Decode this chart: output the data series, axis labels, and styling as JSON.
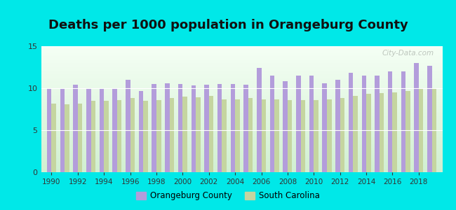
{
  "title": "Deaths per 1000 population in Orangeburg County",
  "years": [
    1990,
    1991,
    1992,
    1993,
    1994,
    1995,
    1996,
    1997,
    1998,
    1999,
    2000,
    2001,
    2002,
    2003,
    2004,
    2005,
    2006,
    2007,
    2008,
    2009,
    2010,
    2011,
    2012,
    2013,
    2014,
    2015,
    2016,
    2017,
    2018,
    2019
  ],
  "orangeburg": [
    9.9,
    9.9,
    10.4,
    10.0,
    10.0,
    10.0,
    11.0,
    9.7,
    10.5,
    10.6,
    10.5,
    10.3,
    10.4,
    10.5,
    10.5,
    10.4,
    12.4,
    11.5,
    10.8,
    11.5,
    11.5,
    10.6,
    11.0,
    11.8,
    11.5,
    11.5,
    12.0,
    12.0,
    13.0,
    12.7
  ],
  "sc": [
    8.2,
    8.1,
    8.2,
    8.5,
    8.5,
    8.6,
    8.8,
    8.5,
    8.6,
    8.8,
    9.0,
    8.9,
    9.1,
    8.7,
    8.7,
    8.8,
    8.7,
    8.7,
    8.6,
    8.6,
    8.6,
    8.7,
    8.8,
    9.1,
    9.3,
    9.4,
    9.5,
    9.7,
    9.9,
    9.9
  ],
  "orangeburg_color": "#b39ddb",
  "sc_color": "#c5d5a0",
  "outer_bg": "#00e8e8",
  "plot_bg_top": "#f0faf0",
  "plot_bg_bottom": "#d8eed8",
  "ylim": [
    0,
    15
  ],
  "yticks": [
    0,
    5,
    10,
    15
  ],
  "title_fontsize": 13,
  "bar_width": 0.35,
  "watermark": "City-Data.com"
}
